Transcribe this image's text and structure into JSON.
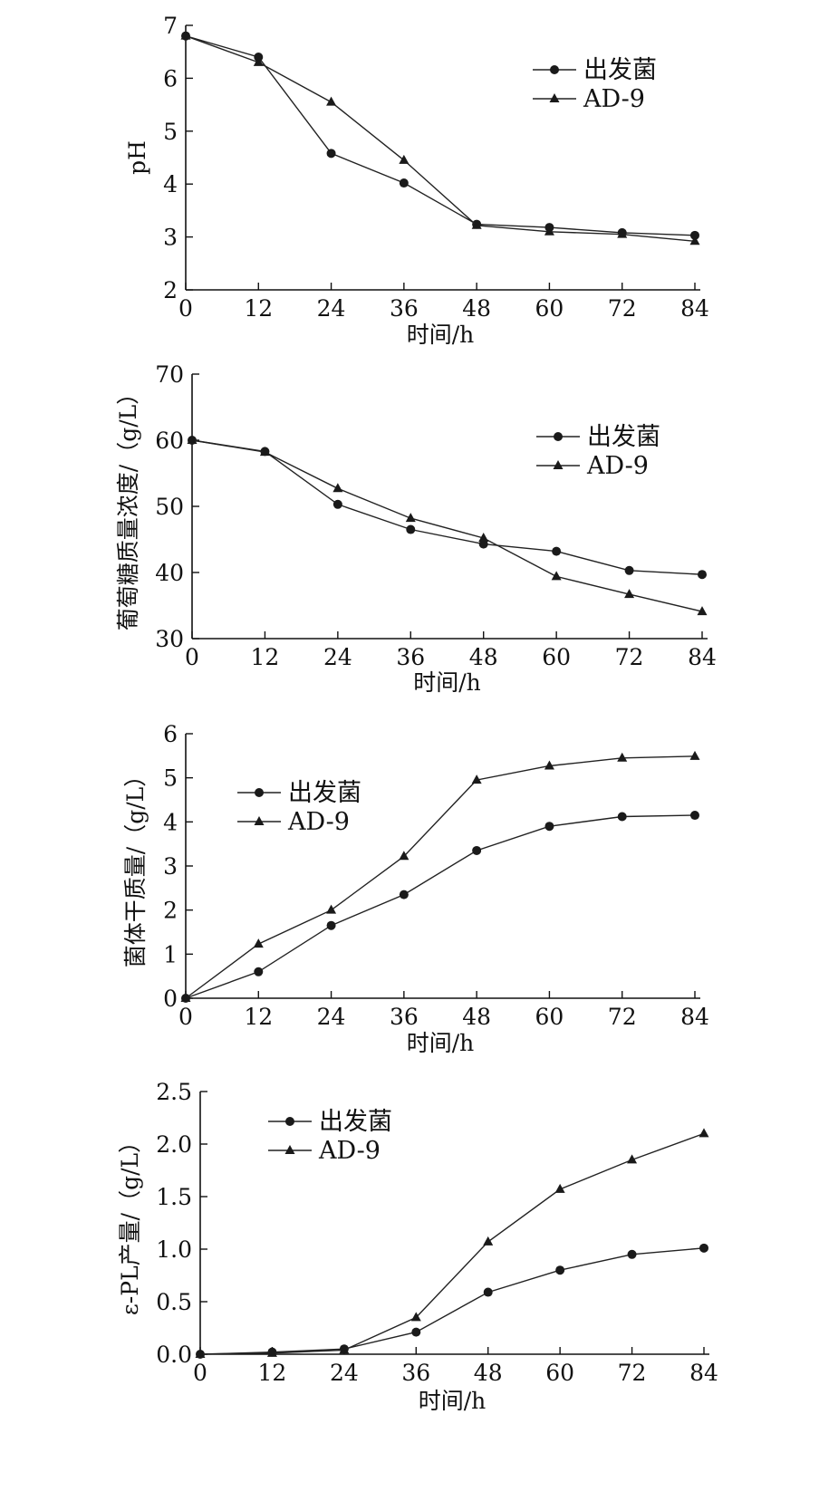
{
  "chart_data": [
    {
      "type": "line",
      "xlabel": "时间/h",
      "ylabel": "pH",
      "x": [
        0,
        12,
        24,
        36,
        48,
        60,
        72,
        84
      ],
      "xticks": [
        "0",
        "12",
        "24",
        "36",
        "48",
        "60",
        "72",
        "84"
      ],
      "ylim": [
        2,
        7
      ],
      "yticks": [
        "2",
        "3",
        "4",
        "5",
        "6",
        "7"
      ],
      "legend_position": "top-right",
      "series": [
        {
          "name": "出发菌",
          "marker": "circle",
          "values": [
            6.8,
            6.4,
            4.58,
            4.02,
            3.24,
            3.18,
            3.08,
            3.03
          ]
        },
        {
          "name": "AD-9",
          "marker": "triangle",
          "values": [
            6.8,
            6.3,
            5.55,
            4.45,
            3.22,
            3.1,
            3.05,
            2.92
          ]
        }
      ]
    },
    {
      "type": "line",
      "xlabel": "时间/h",
      "ylabel": "葡萄糖质量浓度/（g/L）",
      "x": [
        0,
        12,
        24,
        36,
        48,
        60,
        72,
        84
      ],
      "xticks": [
        "0",
        "12",
        "24",
        "36",
        "48",
        "60",
        "72",
        "84"
      ],
      "ylim": [
        30,
        70
      ],
      "yticks": [
        "30",
        "40",
        "50",
        "60",
        "70"
      ],
      "legend_position": "top-right",
      "series": [
        {
          "name": "出发菌",
          "marker": "circle",
          "values": [
            60,
            58.3,
            50.3,
            46.5,
            44.3,
            43.2,
            40.3,
            39.7
          ]
        },
        {
          "name": "AD-9",
          "marker": "triangle",
          "values": [
            60,
            58.2,
            52.7,
            48.2,
            45.2,
            39.4,
            36.7,
            34.1
          ]
        }
      ]
    },
    {
      "type": "line",
      "xlabel": "时间/h",
      "ylabel": "菌体干质量/（g/L）",
      "x": [
        0,
        12,
        24,
        36,
        48,
        60,
        72,
        84
      ],
      "xticks": [
        "0",
        "12",
        "24",
        "36",
        "48",
        "60",
        "72",
        "84"
      ],
      "ylim": [
        0,
        6
      ],
      "yticks": [
        "0",
        "1",
        "2",
        "3",
        "4",
        "5",
        "6"
      ],
      "legend_position": "top-left",
      "series": [
        {
          "name": "出发菌",
          "marker": "circle",
          "values": [
            0,
            0.6,
            1.65,
            2.35,
            3.35,
            3.9,
            4.12,
            4.15
          ]
        },
        {
          "name": "AD-9",
          "marker": "triangle",
          "values": [
            0,
            1.23,
            2.0,
            3.22,
            4.95,
            5.27,
            5.45,
            5.49
          ]
        }
      ]
    },
    {
      "type": "line",
      "xlabel": "时间/h",
      "ylabel": "ε-PL产量/（g/L）",
      "x": [
        0,
        12,
        24,
        36,
        48,
        60,
        72,
        84
      ],
      "xticks": [
        "0",
        "12",
        "24",
        "36",
        "48",
        "60",
        "72",
        "84"
      ],
      "ylim": [
        0,
        2.5
      ],
      "yticks": [
        "0.0",
        "0.5",
        "1.0",
        "1.5",
        "2.0",
        "2.5"
      ],
      "legend_position": "top-left",
      "series": [
        {
          "name": "出发菌",
          "marker": "circle",
          "values": [
            0,
            0.02,
            0.05,
            0.21,
            0.59,
            0.8,
            0.95,
            1.01
          ]
        },
        {
          "name": "AD-9",
          "marker": "triangle",
          "values": [
            0,
            0.01,
            0.04,
            0.35,
            1.07,
            1.57,
            1.85,
            2.1
          ]
        }
      ]
    }
  ]
}
